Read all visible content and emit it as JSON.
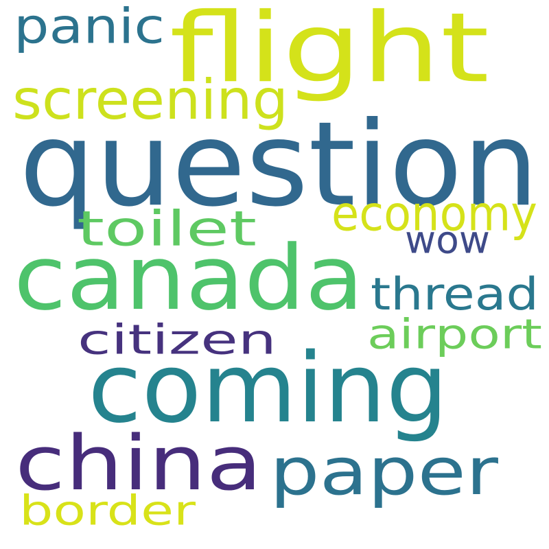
{
  "words": [
    {
      "text": "flight",
      "color": "#d4e21a"
    },
    {
      "text": "panic",
      "color": "#2c738e"
    },
    {
      "text": "screening",
      "color": "#cde11d"
    },
    {
      "text": "question",
      "color": "#31688e"
    },
    {
      "text": "economy",
      "color": "#d5e21a"
    },
    {
      "text": "toilet",
      "color": "#5ec962"
    },
    {
      "text": "wow",
      "color": "#3e4a89"
    },
    {
      "text": "canada",
      "color": "#4ec36b"
    },
    {
      "text": "thread",
      "color": "#2a788e"
    },
    {
      "text": "airport",
      "color": "#6ccd5a"
    },
    {
      "text": "citizen",
      "color": "#46327e"
    },
    {
      "text": "coming",
      "color": "#25838e"
    },
    {
      "text": "china",
      "color": "#472d7b"
    },
    {
      "text": "paper",
      "color": "#2c728e"
    },
    {
      "text": "border",
      "color": "#d8e219"
    }
  ]
}
